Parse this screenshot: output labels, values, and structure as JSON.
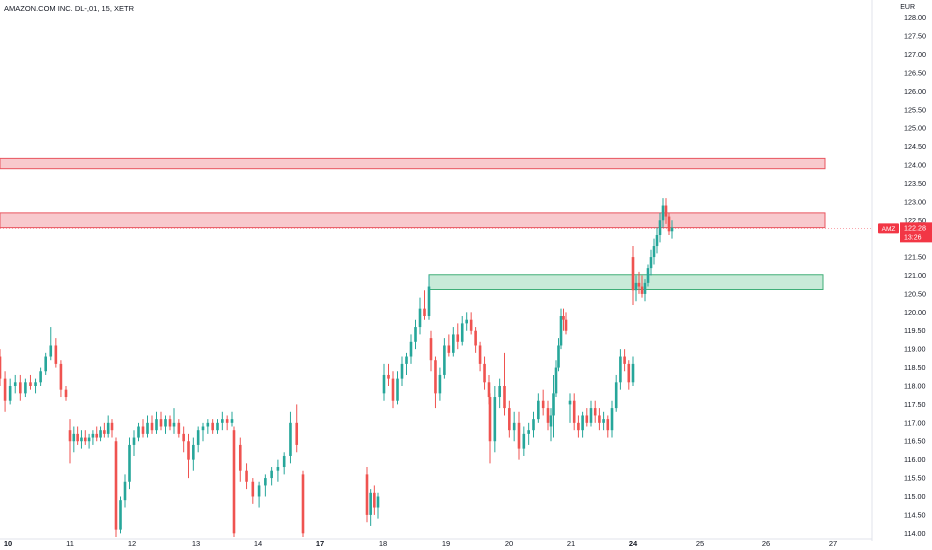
{
  "header": {
    "title": "AMAZON.COM INC. DL-,01, 15, XETR",
    "currency": "EUR"
  },
  "price_tag": {
    "symbol": "AMZ",
    "price": "122.28",
    "countdown": "13:26"
  },
  "colors": {
    "up": "#26a69a",
    "down": "#ef5350",
    "resistance_fill": "#f8c9cd",
    "resistance_stroke": "#e8555f",
    "support_fill": "#c8ead8",
    "support_stroke": "#3fae77",
    "price_tag": "#f23645"
  },
  "chart_data": {
    "type": "candlestick",
    "title": "AMAZON.COM INC. DL-,01, 15, XETR",
    "unit": "EUR",
    "ylim": [
      113.9,
      128.1
    ],
    "y_ticks": [
      "114.00",
      "114.50",
      "115.00",
      "115.50",
      "116.00",
      "116.50",
      "117.00",
      "117.50",
      "118.00",
      "118.50",
      "119.00",
      "119.50",
      "120.00",
      "120.50",
      "121.00",
      "121.50",
      "122.00",
      "122.50",
      "123.00",
      "123.50",
      "124.00",
      "124.50",
      "125.00",
      "125.50",
      "126.00",
      "126.50",
      "127.00",
      "127.50",
      "128.00"
    ],
    "x_ticks": [
      {
        "label": "10",
        "bold": true
      },
      {
        "label": "11",
        "bold": false
      },
      {
        "label": "12",
        "bold": false
      },
      {
        "label": "13",
        "bold": false
      },
      {
        "label": "14",
        "bold": false
      },
      {
        "label": "17",
        "bold": true
      },
      {
        "label": "18",
        "bold": false
      },
      {
        "label": "19",
        "bold": false
      },
      {
        "label": "20",
        "bold": false
      },
      {
        "label": "21",
        "bold": false
      },
      {
        "label": "24",
        "bold": true
      },
      {
        "label": "25",
        "bold": false
      },
      {
        "label": "26",
        "bold": false
      },
      {
        "label": "27",
        "bold": false
      }
    ],
    "zones": [
      {
        "kind": "resistance",
        "low": 123.9,
        "high": 124.18
      },
      {
        "kind": "resistance",
        "low": 122.3,
        "high": 122.7
      },
      {
        "kind": "support",
        "low": 120.62,
        "high": 121.02
      }
    ],
    "last_price": 122.28,
    "candles": [
      [
        "10",
        118.8,
        119.0,
        118.0,
        118.2
      ],
      [
        "10",
        118.2,
        118.4,
        117.3,
        117.6
      ],
      [
        "10",
        117.6,
        118.2,
        117.5,
        118.0
      ],
      [
        "10",
        118.0,
        118.3,
        117.8,
        118.1
      ],
      [
        "10",
        118.1,
        118.3,
        117.6,
        117.8
      ],
      [
        "10",
        117.8,
        118.2,
        117.7,
        118.1
      ],
      [
        "10",
        118.1,
        118.3,
        117.9,
        118.0
      ],
      [
        "10",
        118.0,
        118.2,
        117.8,
        118.1
      ],
      [
        "10",
        118.1,
        118.5,
        118.0,
        118.4
      ],
      [
        "10",
        118.4,
        118.9,
        118.3,
        118.8
      ],
      [
        "10",
        118.8,
        119.6,
        118.7,
        119.1
      ],
      [
        "10",
        119.1,
        119.3,
        118.5,
        118.6
      ],
      [
        "10",
        118.6,
        118.7,
        117.7,
        117.9
      ],
      [
        "10",
        117.9,
        118.0,
        117.6,
        117.7
      ],
      [
        "11",
        116.8,
        117.1,
        115.9,
        116.5
      ],
      [
        "11",
        116.5,
        116.9,
        116.2,
        116.7
      ],
      [
        "11",
        116.7,
        116.9,
        116.4,
        116.5
      ],
      [
        "11",
        116.5,
        116.8,
        116.3,
        116.6
      ],
      [
        "11",
        116.6,
        116.8,
        116.4,
        116.5
      ],
      [
        "11",
        116.5,
        116.7,
        116.3,
        116.6
      ],
      [
        "11",
        116.6,
        116.8,
        116.4,
        116.7
      ],
      [
        "11",
        116.7,
        116.9,
        116.5,
        116.6
      ],
      [
        "11",
        116.6,
        116.9,
        116.5,
        116.8
      ],
      [
        "11",
        116.8,
        117.0,
        116.6,
        116.7
      ],
      [
        "11",
        116.7,
        117.2,
        116.6,
        117.0
      ],
      [
        "11",
        117.0,
        117.1,
        116.6,
        116.8
      ],
      [
        "12",
        116.5,
        116.6,
        113.9,
        114.1
      ],
      [
        "12",
        114.1,
        115.0,
        114.0,
        114.9
      ],
      [
        "12",
        114.9,
        115.6,
        114.7,
        115.4
      ],
      [
        "12",
        115.4,
        116.6,
        115.2,
        116.4
      ],
      [
        "12",
        116.4,
        116.8,
        116.1,
        116.6
      ],
      [
        "12",
        116.6,
        117.0,
        116.5,
        116.9
      ],
      [
        "12",
        116.9,
        117.1,
        116.6,
        116.7
      ],
      [
        "12",
        116.7,
        117.2,
        116.6,
        117.0
      ],
      [
        "12",
        117.0,
        117.2,
        116.7,
        116.8
      ],
      [
        "12",
        116.8,
        117.3,
        116.7,
        117.1
      ],
      [
        "12",
        117.1,
        117.3,
        116.8,
        116.9
      ],
      [
        "12",
        116.9,
        117.2,
        116.7,
        117.1
      ],
      [
        "12",
        117.1,
        117.2,
        116.8,
        116.9
      ],
      [
        "13",
        116.9,
        117.4,
        116.7,
        117.0
      ],
      [
        "13",
        117.0,
        117.1,
        116.6,
        116.7
      ],
      [
        "13",
        116.7,
        116.9,
        116.2,
        116.5
      ],
      [
        "13",
        116.5,
        116.7,
        115.5,
        116.0
      ],
      [
        "13",
        116.0,
        116.6,
        115.7,
        116.4
      ],
      [
        "13",
        116.4,
        116.9,
        116.2,
        116.8
      ],
      [
        "13",
        116.8,
        117.0,
        116.5,
        116.9
      ],
      [
        "13",
        116.9,
        117.1,
        116.7,
        117.0
      ],
      [
        "13",
        117.0,
        117.1,
        116.7,
        116.8
      ],
      [
        "13",
        116.8,
        117.1,
        116.7,
        117.0
      ],
      [
        "13",
        117.0,
        117.3,
        116.8,
        117.1
      ],
      [
        "13",
        117.1,
        117.2,
        116.8,
        117.0
      ],
      [
        "13",
        117.0,
        117.3,
        116.9,
        117.1
      ],
      [
        "14",
        116.8,
        116.9,
        113.9,
        114.0
      ],
      [
        "14",
        116.4,
        116.6,
        115.4,
        115.7
      ],
      [
        "14",
        115.7,
        115.9,
        115.2,
        115.4
      ],
      [
        "14",
        115.4,
        115.5,
        114.8,
        115.0
      ],
      [
        "14",
        115.0,
        115.4,
        114.7,
        115.3
      ],
      [
        "14",
        115.3,
        115.6,
        115.0,
        115.5
      ],
      [
        "14",
        115.5,
        115.8,
        115.3,
        115.7
      ],
      [
        "14",
        115.7,
        116.0,
        115.4,
        115.8
      ],
      [
        "14",
        115.8,
        116.2,
        115.6,
        116.1
      ],
      [
        "14",
        116.1,
        117.3,
        115.9,
        117.0
      ],
      [
        "14",
        117.0,
        117.5,
        116.2,
        116.4
      ],
      [
        "14",
        115.6,
        115.7,
        113.9,
        114.0
      ],
      [
        "17",
        115.6,
        115.8,
        114.3,
        114.5
      ],
      [
        "17",
        114.5,
        115.2,
        114.2,
        115.1
      ],
      [
        "17",
        115.1,
        115.3,
        114.5,
        114.7
      ],
      [
        "17",
        114.7,
        115.1,
        114.4,
        115.0
      ],
      [
        "18",
        117.8,
        118.6,
        117.6,
        118.3
      ],
      [
        "18",
        118.3,
        118.6,
        118.0,
        118.2
      ],
      [
        "18",
        118.2,
        118.4,
        117.4,
        117.6
      ],
      [
        "18",
        117.6,
        118.4,
        117.5,
        118.2
      ],
      [
        "18",
        118.2,
        118.8,
        118.0,
        118.6
      ],
      [
        "18",
        118.6,
        118.9,
        118.3,
        118.8
      ],
      [
        "18",
        118.8,
        119.4,
        118.6,
        119.2
      ],
      [
        "18",
        119.2,
        119.8,
        119.0,
        119.6
      ],
      [
        "18",
        119.6,
        120.4,
        119.4,
        120.1
      ],
      [
        "18",
        120.1,
        120.6,
        119.8,
        119.9
      ],
      [
        "18",
        119.9,
        121.0,
        119.8,
        120.7
      ],
      [
        "19",
        119.3,
        119.5,
        118.4,
        118.7
      ],
      [
        "19",
        118.7,
        118.8,
        117.4,
        117.8
      ],
      [
        "19",
        117.8,
        118.5,
        117.6,
        118.3
      ],
      [
        "19",
        118.3,
        119.3,
        118.2,
        119.1
      ],
      [
        "19",
        119.1,
        119.4,
        118.8,
        118.9
      ],
      [
        "19",
        118.9,
        119.6,
        118.8,
        119.4
      ],
      [
        "19",
        119.4,
        119.7,
        119.0,
        119.2
      ],
      [
        "19",
        119.2,
        119.9,
        119.1,
        119.7
      ],
      [
        "19",
        119.7,
        120.0,
        119.5,
        119.8
      ],
      [
        "19",
        119.8,
        120.0,
        119.4,
        119.5
      ],
      [
        "19",
        119.5,
        119.6,
        118.9,
        119.1
      ],
      [
        "19",
        119.1,
        119.2,
        118.4,
        118.6
      ],
      [
        "19",
        118.6,
        118.8,
        117.9,
        118.1
      ],
      [
        "19",
        118.1,
        118.3,
        117.5,
        117.7
      ],
      [
        "20",
        117.7,
        117.8,
        115.9,
        116.5
      ],
      [
        "20",
        116.5,
        118.0,
        116.2,
        117.7
      ],
      [
        "20",
        117.7,
        118.2,
        117.4,
        118.0
      ],
      [
        "20",
        118.0,
        118.9,
        117.2,
        117.4
      ],
      [
        "20",
        117.4,
        117.6,
        116.6,
        116.8
      ],
      [
        "20",
        116.8,
        117.3,
        116.5,
        117.0
      ],
      [
        "20",
        117.0,
        117.3,
        116.0,
        116.3
      ],
      [
        "20",
        116.3,
        116.9,
        116.1,
        116.7
      ],
      [
        "20",
        116.7,
        117.0,
        116.4,
        116.8
      ],
      [
        "20",
        116.8,
        117.3,
        116.6,
        117.1
      ],
      [
        "20",
        117.1,
        117.8,
        117.0,
        117.6
      ],
      [
        "20",
        117.6,
        117.9,
        117.2,
        117.4
      ],
      [
        "20",
        117.4,
        117.6,
        116.8,
        117.0
      ],
      [
        "21",
        116.9,
        117.4,
        116.5,
        117.2
      ],
      [
        "21",
        117.2,
        118.3,
        116.6,
        117.8
      ],
      [
        "21",
        117.8,
        118.7,
        117.7,
        118.5
      ],
      [
        "21",
        118.5,
        119.3,
        118.4,
        119.1
      ],
      [
        "21",
        119.1,
        120.1,
        119.0,
        119.9
      ],
      [
        "21",
        119.9,
        120.1,
        119.5,
        119.8
      ],
      [
        "21",
        119.8,
        120.0,
        119.4,
        119.5
      ],
      [
        "24",
        117.5,
        117.8,
        117.0,
        117.6
      ],
      [
        "24",
        117.6,
        117.8,
        116.8,
        117.0
      ],
      [
        "24",
        117.0,
        117.2,
        116.6,
        116.8
      ],
      [
        "24",
        116.8,
        117.3,
        116.6,
        117.2
      ],
      [
        "24",
        117.2,
        117.4,
        116.9,
        117.0
      ],
      [
        "24",
        117.0,
        117.6,
        116.9,
        117.4
      ],
      [
        "24",
        117.4,
        117.6,
        117.0,
        117.2
      ],
      [
        "24",
        117.2,
        117.4,
        116.8,
        117.0
      ],
      [
        "24",
        117.0,
        117.3,
        116.8,
        117.1
      ],
      [
        "24",
        117.1,
        117.2,
        116.6,
        116.8
      ],
      [
        "24",
        116.8,
        117.6,
        116.6,
        117.4
      ],
      [
        "24",
        117.4,
        118.3,
        117.3,
        118.1
      ],
      [
        "24",
        118.1,
        119.0,
        117.9,
        118.8
      ],
      [
        "24",
        118.8,
        119.0,
        118.4,
        118.6
      ],
      [
        "24",
        118.6,
        118.7,
        117.9,
        118.1
      ],
      [
        "24",
        118.1,
        118.8,
        118.0,
        118.6
      ],
      [
        "24",
        121.5,
        121.8,
        120.2,
        120.6
      ],
      [
        "24",
        120.6,
        121.0,
        120.3,
        120.8
      ],
      [
        "24",
        120.8,
        121.1,
        120.5,
        120.7
      ],
      [
        "24",
        120.7,
        121.0,
        120.4,
        120.5
      ],
      [
        "24",
        120.5,
        120.9,
        120.3,
        120.8
      ],
      [
        "24",
        120.8,
        121.3,
        120.7,
        121.2
      ],
      [
        "24",
        121.2,
        121.7,
        121.0,
        121.5
      ],
      [
        "24",
        121.5,
        122.0,
        121.3,
        121.8
      ],
      [
        "24",
        121.8,
        122.3,
        121.6,
        122.1
      ],
      [
        "24",
        122.1,
        122.7,
        121.9,
        122.5
      ],
      [
        "24",
        122.5,
        123.1,
        122.3,
        122.9
      ],
      [
        "24",
        122.9,
        123.1,
        122.4,
        122.6
      ],
      [
        "24",
        122.6,
        122.7,
        122.1,
        122.2
      ],
      [
        "24",
        122.2,
        122.5,
        122.0,
        122.3
      ]
    ]
  }
}
